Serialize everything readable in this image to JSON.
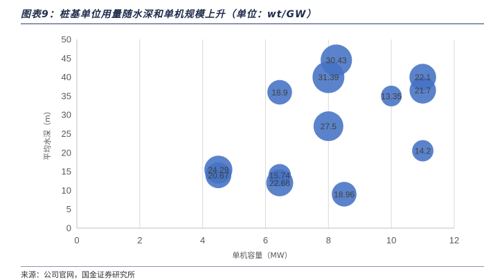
{
  "figure": {
    "title": "图表9：桩基单位用量随水深和单机规模上升（单位：wt/GW）",
    "source": "来源：公司官网，国金证券研究所"
  },
  "colors": {
    "bubble_fill": "#4472c4",
    "gridline": "#d9d9d9",
    "axis_line": "#bfbfbf",
    "rule": "#2b3b6b"
  },
  "chart_data": {
    "type": "bubble",
    "title": "",
    "xlabel": "单机容量（MW）",
    "ylabel": "平均水深（m）",
    "xlim": [
      0,
      12
    ],
    "ylim": [
      0,
      50
    ],
    "xticks": [
      "0",
      "2",
      "4",
      "6",
      "8",
      "10",
      "12"
    ],
    "yticks": [
      "0",
      "5",
      "10",
      "15",
      "20",
      "25",
      "30",
      "35",
      "40",
      "45",
      "50"
    ],
    "grid": "vertical",
    "legend": "none",
    "points": [
      {
        "x": 8.25,
        "y": 44.5,
        "size": 30.43
      },
      {
        "x": 8.0,
        "y": 40.0,
        "size": 31.39
      },
      {
        "x": 11.0,
        "y": 40.0,
        "size": 22.1
      },
      {
        "x": 11.0,
        "y": 36.5,
        "size": 21.7
      },
      {
        "x": 6.45,
        "y": 36.0,
        "size": 18.9
      },
      {
        "x": 10.0,
        "y": 35.0,
        "size": 13.35
      },
      {
        "x": 8.0,
        "y": 27.0,
        "size": 27.5
      },
      {
        "x": 11.0,
        "y": 20.5,
        "size": 14.2
      },
      {
        "x": 4.5,
        "y": 15.5,
        "size": 24.29
      },
      {
        "x": 4.5,
        "y": 14.0,
        "size": 20.67
      },
      {
        "x": 6.45,
        "y": 14.0,
        "size": 15.74
      },
      {
        "x": 6.45,
        "y": 12.0,
        "size": 22.68
      },
      {
        "x": 8.5,
        "y": 9.0,
        "size": 18.96
      }
    ]
  }
}
